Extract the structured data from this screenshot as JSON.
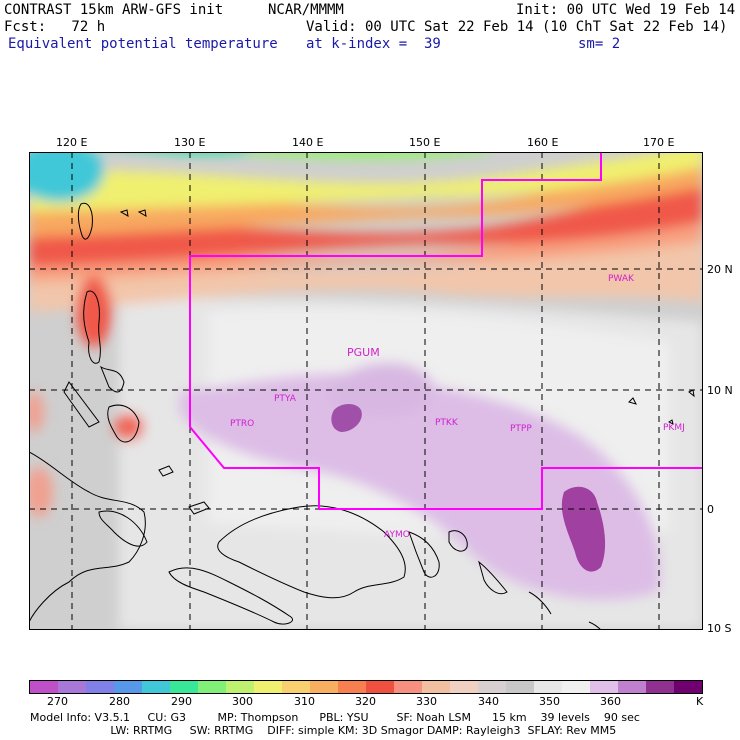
{
  "header": {
    "model": "CONTRAST 15km ARW-GFS init",
    "org": "NCAR/MMMM",
    "init": "Init: 00 UTC Wed 19 Feb 14",
    "fcst": "Fcst:   72 h",
    "valid": "Valid: 00 UTC Sat 22 Feb 14 (10 ChT Sat 22 Feb 14)",
    "field": "Equivalent potential temperature",
    "level": "at k-index =  39",
    "smooth": "sm= 2"
  },
  "map": {
    "lon_labels": [
      "120 E",
      "130 E",
      "140 E",
      "150 E",
      "160 E",
      "170 E"
    ],
    "lat_labels": [
      "20 N",
      "10 N",
      "0",
      "10 S"
    ],
    "stations": [
      {
        "id": "PGUM",
        "big": true
      },
      {
        "id": "PTYA"
      },
      {
        "id": "PTRO"
      },
      {
        "id": "PTKK"
      },
      {
        "id": "PTPP"
      },
      {
        "id": "PKMJ"
      },
      {
        "id": "PWAK"
      },
      {
        "id": "AYMO"
      }
    ]
  },
  "colorbar": {
    "colors": [
      "#c050c8",
      "#a878d8",
      "#8080e8",
      "#5898e8",
      "#40c8d8",
      "#38e898",
      "#80f078",
      "#c0f070",
      "#f0f070",
      "#f8d070",
      "#f8b060",
      "#f88050",
      "#f05040",
      "#f89080",
      "#f0c0a0",
      "#f0d0c0",
      "#d8d0d0",
      "#c8c8c8",
      "#e8e8e8",
      "#f0f0f0",
      "#e0c0e8",
      "#c080d0",
      "#903090",
      "#700070"
    ],
    "labels": [
      "270",
      "280",
      "290",
      "300",
      "310",
      "320",
      "330",
      "340",
      "350",
      "360"
    ],
    "unit": "K"
  },
  "info": {
    "line1": "Model Info: V3.5.1     CU: G3         MP: Thompson      PBL: YSU        SF: Noah LSM      15 km    39 levels    90 sec",
    "line2": "                       LW: RRTMG     SW: RRTMG    DIFF: simple KM: 3D Smagor DAMP: Rayleigh3  SFLAY: Rev MM5"
  }
}
